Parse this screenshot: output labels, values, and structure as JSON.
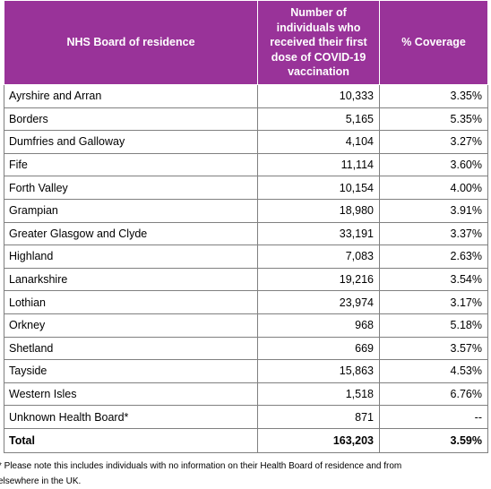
{
  "table": {
    "headers": [
      "NHS Board of residence",
      "Number of individuals who received their first dose of COVID-19 vaccination",
      "% Coverage"
    ],
    "rows": [
      [
        "Ayrshire and Arran",
        "10,333",
        "3.35%"
      ],
      [
        "Borders",
        "5,165",
        "5.35%"
      ],
      [
        "Dumfries and Galloway",
        "4,104",
        "3.27%"
      ],
      [
        "Fife",
        "11,114",
        "3.60%"
      ],
      [
        "Forth Valley",
        "10,154",
        "4.00%"
      ],
      [
        "Grampian",
        "18,980",
        "3.91%"
      ],
      [
        "Greater Glasgow and Clyde",
        "33,191",
        "3.37%"
      ],
      [
        "Highland",
        "7,083",
        "2.63%"
      ],
      [
        "Lanarkshire",
        "19,216",
        "3.54%"
      ],
      [
        "Lothian",
        "23,974",
        "3.17%"
      ],
      [
        "Orkney",
        "968",
        "5.18%"
      ],
      [
        "Shetland",
        "669",
        "3.57%"
      ],
      [
        "Tayside",
        "15,863",
        "4.53%"
      ],
      [
        "Western Isles",
        "1,518",
        "6.76%"
      ],
      [
        "Unknown Health Board*",
        "871",
        "--"
      ]
    ],
    "total": [
      "Total",
      "163,203",
      "3.59%"
    ]
  },
  "footnote": {
    "line1": "* Please note this includes individuals with no information on their Health Board of residence and from",
    "line2": "elsewhere in the UK."
  },
  "colors": {
    "header_bg": "#993399",
    "header_text": "#ffffff",
    "border": "#808080"
  }
}
